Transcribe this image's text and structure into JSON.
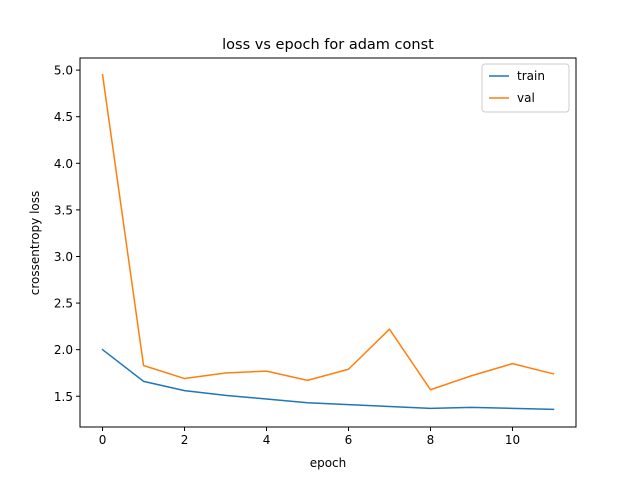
{
  "chart_data": {
    "type": "line",
    "title": "loss vs epoch for adam const",
    "xlabel": "epoch",
    "ylabel": "crossentropy loss",
    "xlim": [
      -0.55,
      11.55
    ],
    "ylim": [
      1.17,
      5.13
    ],
    "xticks": [
      0,
      2,
      4,
      6,
      8,
      10
    ],
    "yticks": [
      1.5,
      2.0,
      2.5,
      3.0,
      3.5,
      4.0,
      4.5,
      5.0
    ],
    "ytick_labels": [
      "1.5",
      "2.0",
      "2.5",
      "3.0",
      "3.5",
      "4.0",
      "4.5",
      "5.0"
    ],
    "grid": false,
    "legend_position": "top-right",
    "x": [
      0,
      1,
      2,
      3,
      4,
      5,
      6,
      7,
      8,
      9,
      10,
      11
    ],
    "series": [
      {
        "name": "train",
        "color": "#1f77b4",
        "values": [
          2.0,
          1.66,
          1.56,
          1.51,
          1.47,
          1.43,
          1.41,
          1.39,
          1.37,
          1.38,
          1.37,
          1.36
        ]
      },
      {
        "name": "val",
        "color": "#ff7f0e",
        "values": [
          4.95,
          1.83,
          1.69,
          1.75,
          1.77,
          1.67,
          1.79,
          2.22,
          1.57,
          1.72,
          1.85,
          1.74
        ]
      }
    ]
  }
}
